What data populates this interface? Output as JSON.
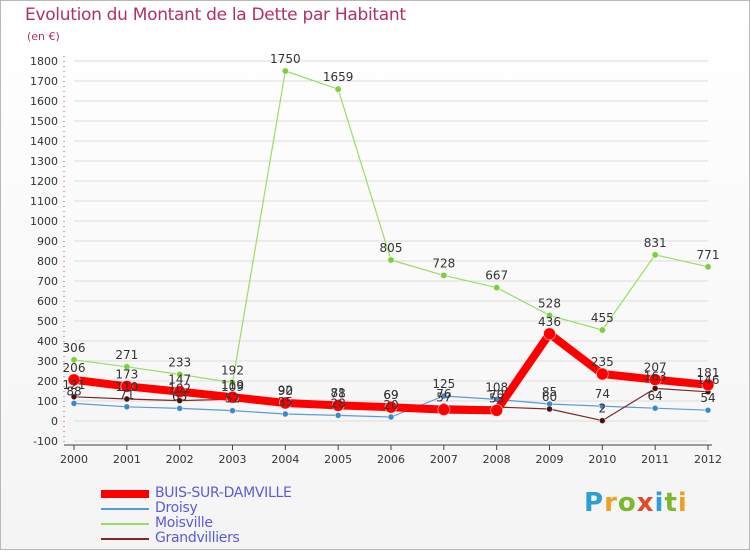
{
  "title": "Evolution du Montant de la Dette par Habitant",
  "subtitle": "(en €)",
  "logo": {
    "letters": [
      "P",
      "r",
      "o",
      "x",
      "i",
      "t",
      "i"
    ]
  },
  "chart_data": {
    "type": "line",
    "title": "Evolution du Montant de la Dette par Habitant",
    "ylabel": "(en €)",
    "xlabel": "",
    "x": [
      "2000",
      "2001",
      "2002",
      "2003",
      "2004",
      "2005",
      "2006",
      "2007",
      "2008",
      "2009",
      "2010",
      "2011",
      "2012"
    ],
    "ylim": [
      -100,
      1800
    ],
    "yticks": [
      -100,
      0,
      100,
      200,
      300,
      400,
      500,
      600,
      700,
      800,
      900,
      1000,
      1100,
      1200,
      1300,
      1400,
      1500,
      1600,
      1700,
      1800
    ],
    "legend_position": "bottom-left",
    "series": [
      {
        "name": "Moisville",
        "color": "#99dd66",
        "values": [
          306,
          271,
          233,
          192,
          1750,
          1659,
          805,
          728,
          667,
          528,
          455,
          831,
          771
        ],
        "labels": [
          "306",
          "271",
          "233",
          "192",
          "1750",
          "1659",
          "805",
          "728",
          "667",
          "528",
          "455",
          "831",
          "771"
        ]
      },
      {
        "name": "Droisy",
        "color": "#5a9bd5",
        "values": [
          88,
          71,
          63,
          52,
          35,
          28,
          20,
          125,
          108,
          85,
          74,
          64,
          54
        ],
        "labels": [
          "88",
          "71",
          "63",
          "52",
          "35",
          "28",
          "20",
          "125",
          "108",
          "85",
          "74",
          "64",
          "54"
        ]
      },
      {
        "name": "Grandvilliers",
        "color": "#7a2a2a",
        "values": [
          121,
          110,
          102,
          109,
          92,
          81,
          69,
          76,
          70,
          60,
          2,
          163,
          146
        ],
        "labels": [
          "121",
          "110",
          "102",
          "109",
          "92",
          "81",
          "69",
          "76",
          "70",
          "60",
          "2",
          "163",
          "146"
        ]
      },
      {
        "name": "BUIS-SUR-DAMVILLE",
        "color": "#ff0000",
        "values": [
          206,
          173,
          147,
          119,
          90,
          78,
          69,
          57,
          53,
          436,
          235,
          207,
          181
        ],
        "labels": [
          "206",
          "173",
          "147",
          "119",
          "90",
          "78",
          "69",
          "57",
          "53",
          "436",
          "235",
          "207",
          "181"
        ]
      }
    ],
    "legend_order": [
      "BUIS-SUR-DAMVILLE",
      "Droisy",
      "Moisville",
      "Grandvilliers"
    ]
  }
}
